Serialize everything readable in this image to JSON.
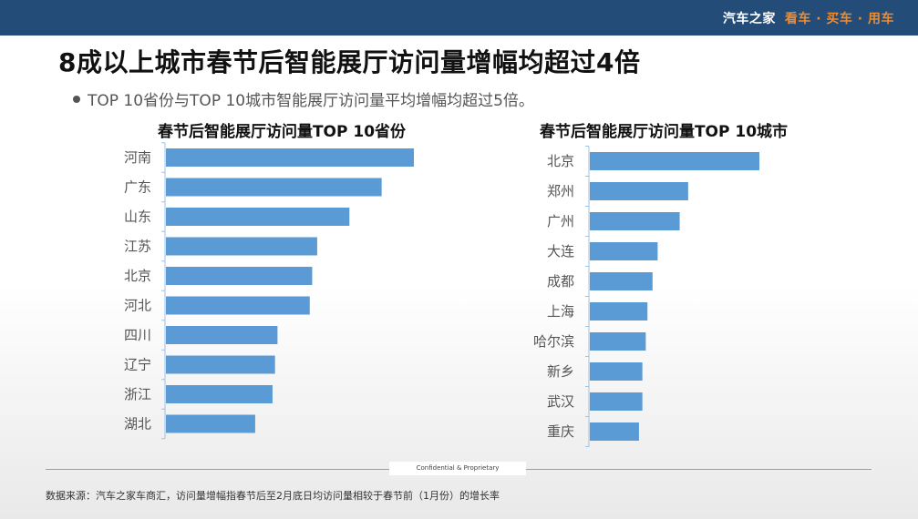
{
  "header": {
    "brand_name": "汽车之家",
    "brand_slogan": "看车 · 买车 · 用车",
    "colors": {
      "bar": "#234d78",
      "brand_text": "#ffffff",
      "slogan": "#f08a2a"
    }
  },
  "title": "8成以上城市春节后智能展厅访问量增幅均超过4倍",
  "bullet": "TOP 10省份与TOP 10城市智能展厅访问量平均增幅均超过5倍。",
  "chart_data": [
    {
      "type": "bar",
      "orientation": "horizontal",
      "title": "春节后智能展厅访问量TOP 10省份",
      "categories": [
        "河南",
        "广东",
        "山东",
        "江苏",
        "北京",
        "河北",
        "四川",
        "辽宁",
        "浙江",
        "湖北"
      ],
      "values": [
        100,
        87,
        74,
        61,
        59,
        58,
        45,
        44,
        43,
        36
      ],
      "xlim": [
        0,
        100
      ],
      "color": "#5b9bd5",
      "grid": false,
      "value_axis_shown": false
    },
    {
      "type": "bar",
      "orientation": "horizontal",
      "title": "春节后智能展厅访问量TOP 10城市",
      "categories": [
        "北京",
        "郑州",
        "广州",
        "大连",
        "成都",
        "上海",
        "哈尔滨",
        "新乡",
        "武汉",
        "重庆"
      ],
      "values": [
        100,
        58,
        53,
        40,
        37,
        34,
        33,
        31,
        31,
        29
      ],
      "xlim": [
        0,
        100
      ],
      "color": "#5b9bd5",
      "grid": false,
      "value_axis_shown": false
    }
  ],
  "footer": {
    "confidential": "Confidential & Proprietary",
    "source": "数据来源：汽车之家车商汇，访问量增幅指春节后至2月底日均访问量相较于春节前（1月份）的增长率"
  }
}
